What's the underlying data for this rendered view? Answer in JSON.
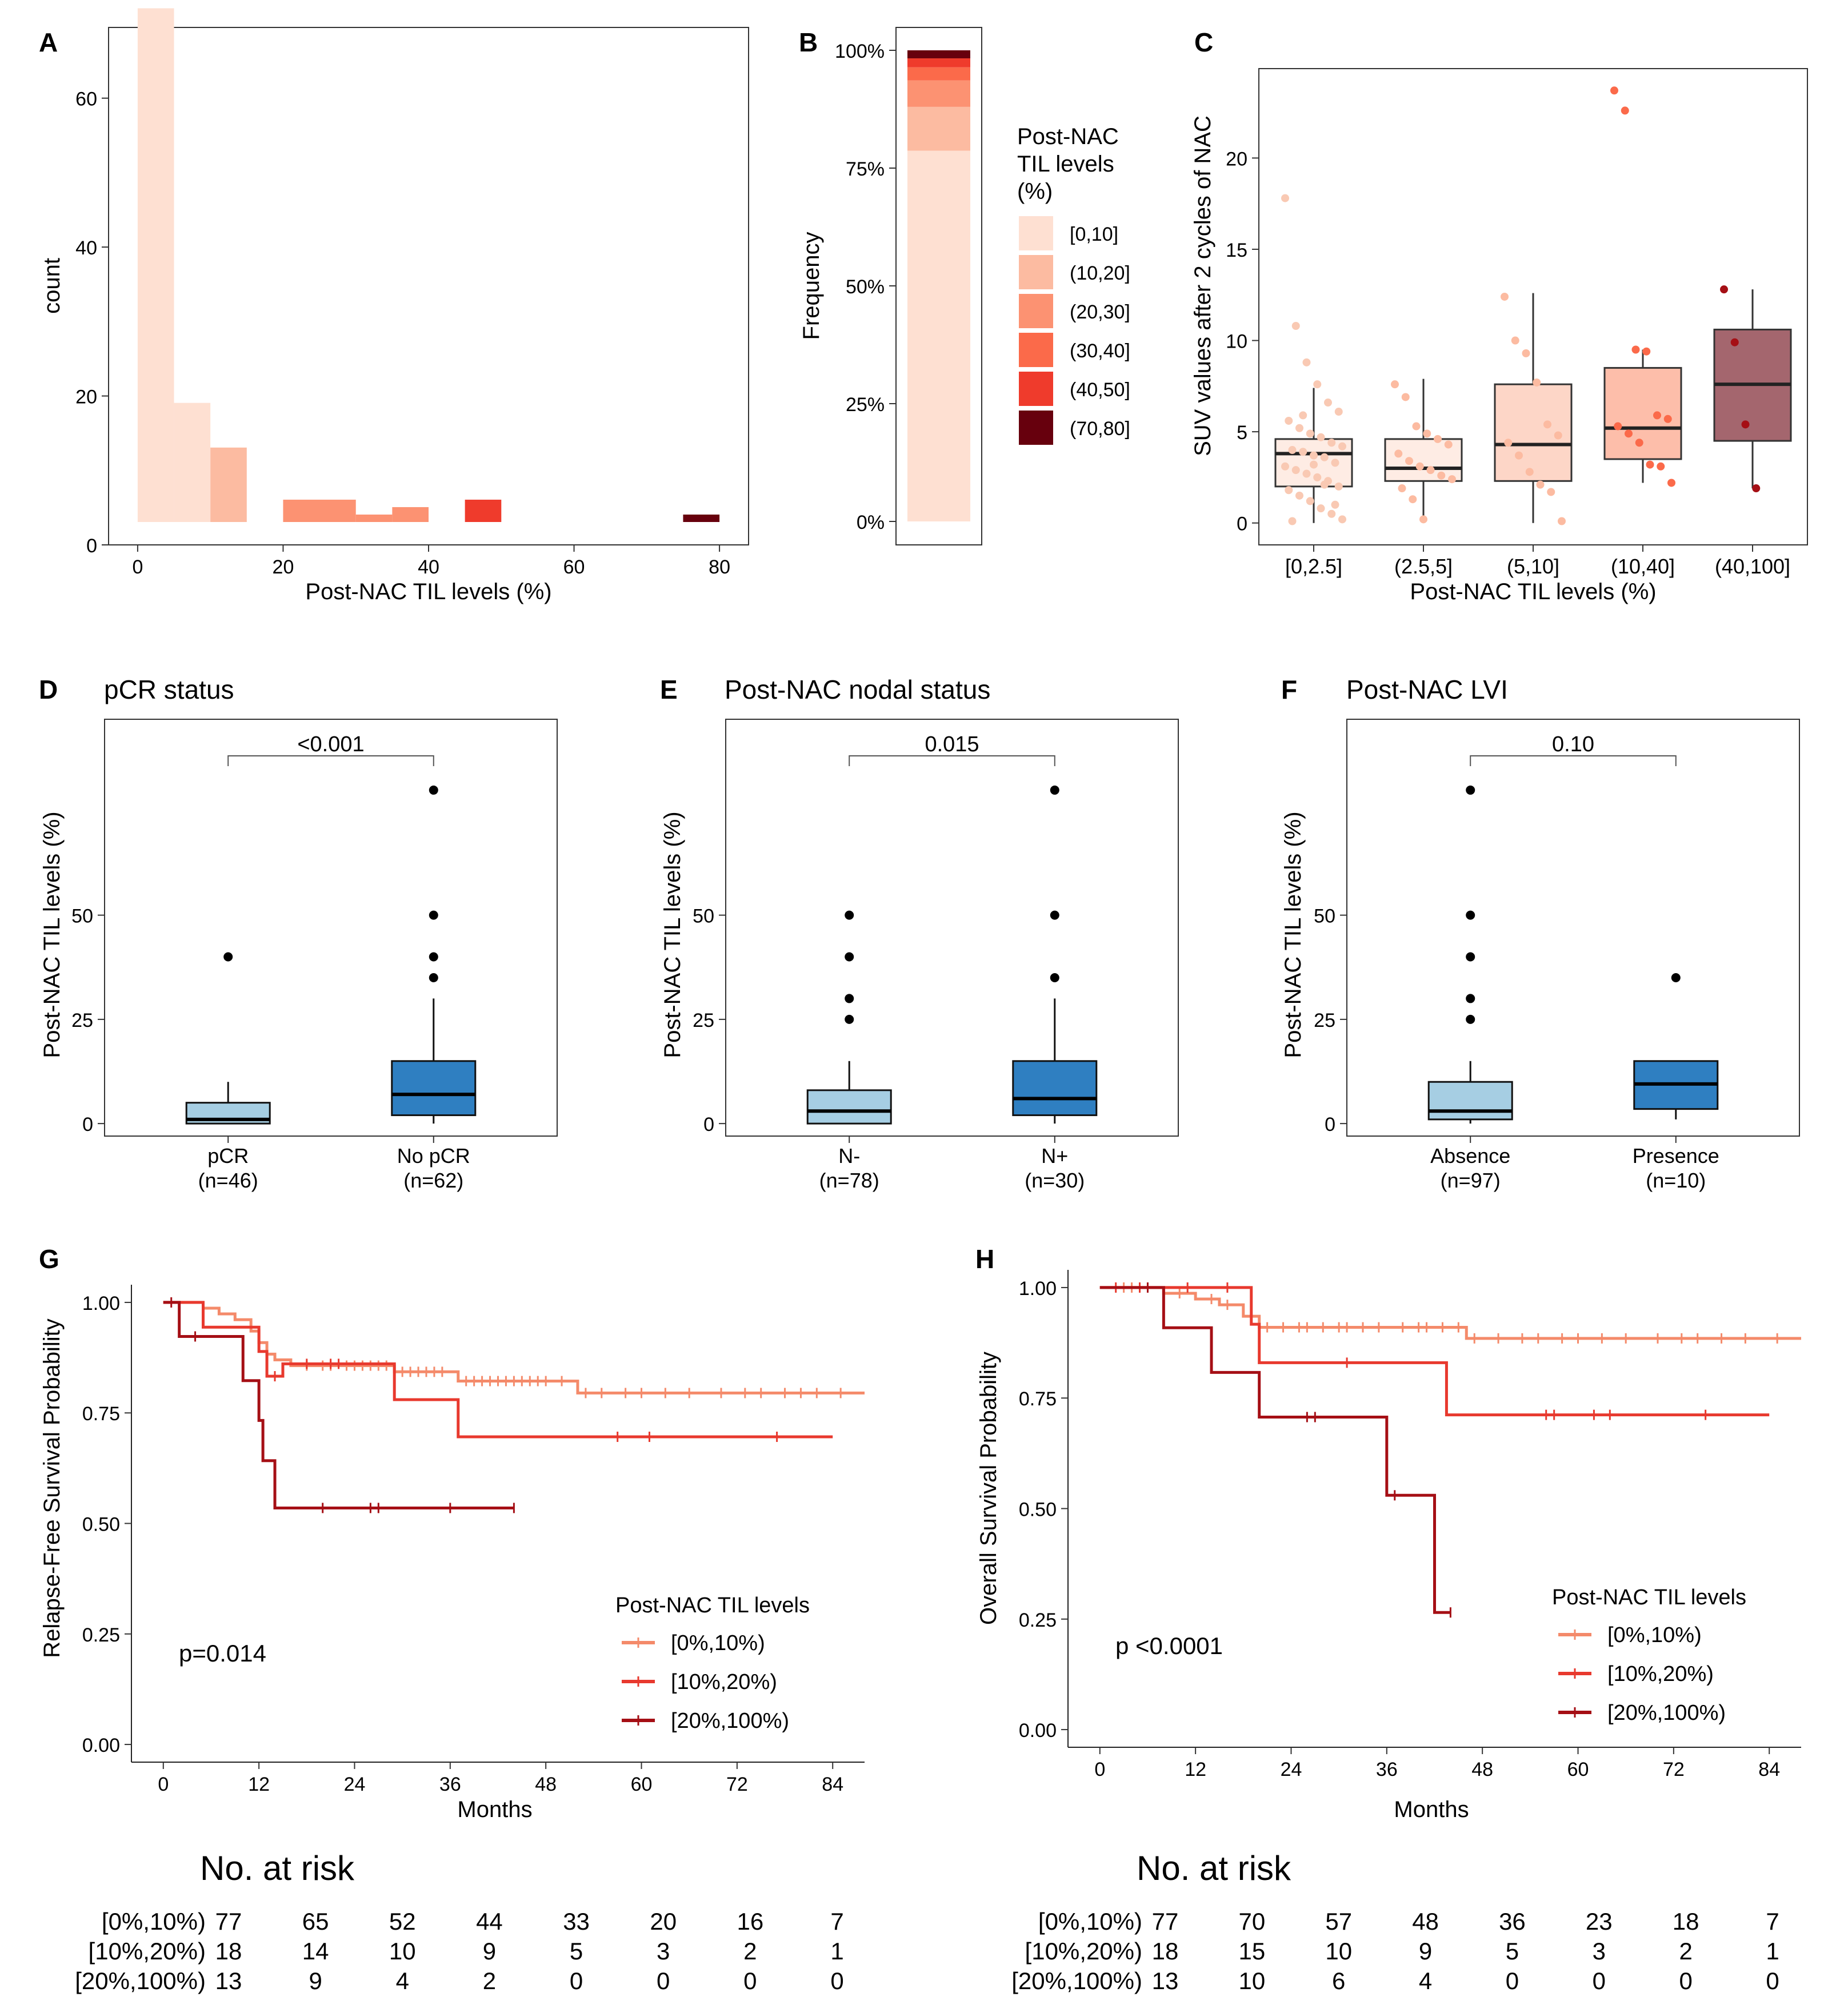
{
  "colors": {
    "t0": "#fee0d2",
    "t1": "#fcbba1",
    "t2": "#fc9272",
    "t3": "#fb6a4a",
    "t4": "#ef3b2c",
    "t5": "#67000d",
    "km0": "#f48a6a",
    "km1": "#e8392e",
    "km2": "#a50f15",
    "box_light": "#a6cee3",
    "box_dark": "#2f7fc1",
    "point": "#000000"
  },
  "chart_data": [
    {
      "panel": "A",
      "type": "bar",
      "xlabel": "Post-NAC TIL levels (%)",
      "ylabel": "count",
      "xlim": [
        -4,
        84
      ],
      "ylim": [
        0,
        69.5
      ],
      "xticks": [
        0,
        20,
        40,
        60,
        80
      ],
      "yticks": [
        0,
        20,
        40,
        60
      ],
      "bins": [
        {
          "x0": 0,
          "x1": 5,
          "count": 69,
          "cat": 0
        },
        {
          "x0": 5,
          "x1": 10,
          "count": 16,
          "cat": 0
        },
        {
          "x0": 10,
          "x1": 15,
          "count": 10,
          "cat": 1
        },
        {
          "x0": 20,
          "x1": 30,
          "count": 3,
          "cat": 2
        },
        {
          "x0": 30,
          "x1": 35,
          "count": 1,
          "cat": 2
        },
        {
          "x0": 35,
          "x1": 40,
          "count": 2,
          "cat": 2
        },
        {
          "x0": 45,
          "x1": 50,
          "count": 3,
          "cat": 4
        },
        {
          "x0": 75,
          "x1": 80,
          "count": 1,
          "cat": 5
        }
      ]
    },
    {
      "panel": "B",
      "type": "bar",
      "ylabel": "Frequency",
      "yticks": [
        "0%",
        "25%",
        "50%",
        "75%",
        "100%"
      ],
      "legend_title": [
        "Post-NAC",
        "TIL levels",
        "(%)"
      ],
      "categories": [
        "[0,10]",
        "(10,20]",
        "(20,30]",
        "(30,40]",
        "(40,50]",
        "(70,80]"
      ],
      "values": [
        0.787,
        0.093,
        0.056,
        0.028,
        0.019,
        0.017
      ]
    },
    {
      "panel": "C",
      "type": "scatter",
      "xlabel": "Post-NAC TIL levels (%)",
      "ylabel": "SUV values after 2 cycles of NAC",
      "ylim": [
        -1.2,
        24.9
      ],
      "yticks": [
        0,
        5,
        10,
        15,
        20
      ],
      "categories": [
        "[0,2.5]",
        "(2.5,5]",
        "(5,10]",
        "(10,40]",
        "(40,100]"
      ],
      "boxes": [
        {
          "q1": 2.0,
          "median": 3.8,
          "q3": 4.6,
          "wlo": 0,
          "whi": 7.4,
          "points": [
            17.8,
            10.8,
            8.8,
            7.6,
            6.6,
            6.1,
            5.6,
            5.2,
            4.9,
            4.7,
            4.4,
            4.2,
            4.0,
            3.9,
            3.7,
            3.6,
            3.3,
            3.1,
            2.9,
            2.7,
            2.5,
            2.3,
            2.0,
            1.8,
            1.5,
            1.2,
            0.8,
            0.5,
            0.2,
            0.1,
            5.9,
            3.2,
            2.1,
            1.0
          ]
        },
        {
          "q1": 2.3,
          "median": 3.0,
          "q3": 4.6,
          "wlo": 0,
          "whi": 7.9,
          "points": [
            7.6,
            6.9,
            5.3,
            4.9,
            4.6,
            4.3,
            3.8,
            3.4,
            3.1,
            2.9,
            2.6,
            2.4,
            1.9,
            1.3,
            0.2
          ]
        },
        {
          "q1": 2.3,
          "median": 4.3,
          "q3": 7.6,
          "wlo": 0,
          "whi": 12.6,
          "points": [
            12.4,
            10.0,
            9.3,
            7.7,
            5.4,
            4.8,
            4.4,
            3.7,
            2.8,
            2.1,
            1.7,
            0.1
          ]
        },
        {
          "q1": 3.5,
          "median": 5.2,
          "q3": 8.5,
          "wlo": 2.2,
          "whi": 9.5,
          "points": [
            23.7,
            22.6,
            9.5,
            9.4,
            5.9,
            5.7,
            5.3,
            4.9,
            4.4,
            3.2,
            3.1,
            2.2
          ]
        },
        {
          "q1": 4.5,
          "median": 7.6,
          "q3": 10.6,
          "wlo": 1.9,
          "whi": 12.8,
          "points": [
            12.8,
            9.9,
            5.4,
            1.9
          ]
        }
      ]
    },
    {
      "panel": "D",
      "title": "pCR status",
      "type": "bar",
      "ylabel": "Post-NAC TIL levels (%)",
      "ylim": [
        -3,
        97
      ],
      "yticks": [
        0,
        25,
        50
      ],
      "pvalue": "<0.001",
      "groups": [
        {
          "label": "pCR",
          "n": "(n=46)",
          "color": "light",
          "q1": 0,
          "median": 1,
          "q3": 5,
          "wlo": 0,
          "whi": 10,
          "outliers": [
            40
          ]
        },
        {
          "label": "No pCR",
          "n": "(n=62)",
          "color": "dark",
          "q1": 2,
          "median": 7,
          "q3": 15,
          "wlo": 0,
          "whi": 30,
          "outliers": [
            35,
            40,
            50,
            80
          ]
        }
      ]
    },
    {
      "panel": "E",
      "title": "Post-NAC nodal status",
      "type": "bar",
      "ylabel": "Post-NAC TIL levels (%)",
      "ylim": [
        -3,
        97
      ],
      "yticks": [
        0,
        25,
        50
      ],
      "pvalue": "0.015",
      "groups": [
        {
          "label": "N-",
          "n": "(n=78)",
          "color": "light",
          "q1": 0,
          "median": 3,
          "q3": 8,
          "wlo": 0,
          "whi": 15,
          "outliers": [
            25,
            30,
            40,
            50
          ]
        },
        {
          "label": "N+",
          "n": "(n=30)",
          "color": "dark",
          "q1": 2,
          "median": 6,
          "q3": 15,
          "wlo": 0,
          "whi": 30,
          "outliers": [
            35,
            50,
            80
          ]
        }
      ]
    },
    {
      "panel": "F",
      "title": "Post-NAC LVI",
      "type": "bar",
      "ylabel": "Post-NAC TIL levels (%)",
      "ylim": [
        -3,
        97
      ],
      "yticks": [
        0,
        25,
        50
      ],
      "pvalue": "0.10",
      "groups": [
        {
          "label": "Absence",
          "n": "(n=97)",
          "color": "light",
          "q1": 1,
          "median": 3,
          "q3": 10,
          "wlo": 0,
          "whi": 15,
          "outliers": [
            25,
            30,
            40,
            50,
            80
          ]
        },
        {
          "label": "Presence",
          "n": "(n=10)",
          "color": "dark",
          "q1": 3.5,
          "median": 9.5,
          "q3": 15,
          "wlo": 1,
          "whi": 15,
          "outliers": [
            35
          ]
        }
      ]
    },
    {
      "panel": "G",
      "type": "line",
      "xlabel": "Months",
      "ylabel": "Relapse-Free Survival Probability",
      "xlim": [
        -4,
        88
      ],
      "ylim": [
        -0.04,
        1.04
      ],
      "xticks": [
        0,
        12,
        24,
        36,
        48,
        60,
        72,
        84
      ],
      "yticks": [
        "0.00",
        "0.25",
        "0.50",
        "0.75",
        "1.00"
      ],
      "pvalue": "p=0.014",
      "legend_title": "Post-NAC TIL levels",
      "series": [
        {
          "name": "[0%,10%)",
          "steps": [
            [
              0,
              1.0
            ],
            [
              5,
              0.987
            ],
            [
              7,
              0.974
            ],
            [
              9,
              0.961
            ],
            [
              11,
              0.935
            ],
            [
              12,
              0.909
            ],
            [
              13,
              0.883
            ],
            [
              14,
              0.87
            ],
            [
              16,
              0.857
            ],
            [
              29,
              0.843
            ],
            [
              37,
              0.822
            ],
            [
              52,
              0.795
            ],
            [
              88,
              0.795
            ]
          ],
          "censor": [
            18,
            20,
            21,
            23,
            24,
            25,
            26,
            27,
            28,
            30,
            31,
            32,
            33,
            34,
            35,
            38,
            39,
            40,
            41,
            42,
            43,
            44,
            45,
            46,
            47,
            48,
            50,
            53,
            55,
            58,
            60,
            63,
            66,
            70,
            73,
            75,
            78,
            80,
            82,
            85
          ]
        },
        {
          "name": "[10%,20%)",
          "steps": [
            [
              0,
              1.0
            ],
            [
              5,
              0.944
            ],
            [
              12,
              0.889
            ],
            [
              13,
              0.833
            ],
            [
              15,
              0.861
            ],
            [
              29,
              0.78
            ],
            [
              37,
              0.696
            ],
            [
              84,
              0.696
            ]
          ],
          "censor": [
            14,
            18,
            21,
            22,
            57,
            61,
            77
          ]
        },
        {
          "name": "[20%,100%)",
          "steps": [
            [
              0,
              1.0
            ],
            [
              2,
              0.923
            ],
            [
              10,
              0.823
            ],
            [
              12,
              0.733
            ],
            [
              12.5,
              0.642
            ],
            [
              14,
              0.535
            ],
            [
              44,
              0.535
            ]
          ],
          "censor": [
            1,
            4,
            20,
            26,
            27,
            36,
            44
          ]
        }
      ],
      "risk_title": "No. at risk",
      "risk": [
        {
          "label": "[0%,10%)",
          "counts": [
            77,
            65,
            52,
            44,
            33,
            20,
            16,
            7
          ]
        },
        {
          "label": "[10%,20%)",
          "counts": [
            18,
            14,
            10,
            9,
            5,
            3,
            2,
            1
          ]
        },
        {
          "label": "[20%,100%)",
          "counts": [
            13,
            9,
            4,
            2,
            0,
            0,
            0,
            0
          ]
        }
      ]
    },
    {
      "panel": "H",
      "type": "line",
      "xlabel": "Months",
      "ylabel": "Overall Survival Probability",
      "xlim": [
        -4,
        88
      ],
      "ylim": [
        -0.04,
        1.04
      ],
      "xticks": [
        0,
        12,
        24,
        36,
        48,
        60,
        72,
        84
      ],
      "yticks": [
        "0.00",
        "0.25",
        "0.50",
        "0.75",
        "1.00"
      ],
      "pvalue": "p <0.0001",
      "legend_title": "Post-NAC TIL levels",
      "series": [
        {
          "name": "[0%,10%)",
          "steps": [
            [
              0,
              1.0
            ],
            [
              8,
              0.987
            ],
            [
              12,
              0.974
            ],
            [
              15,
              0.961
            ],
            [
              18,
              0.935
            ],
            [
              20,
              0.91
            ],
            [
              46,
              0.885
            ],
            [
              88,
              0.885
            ]
          ],
          "censor": [
            3,
            4,
            10,
            14,
            16,
            21,
            23,
            25,
            26,
            28,
            30,
            31,
            33,
            35,
            38,
            40,
            41,
            43,
            45,
            47,
            50,
            53,
            55,
            58,
            60,
            63,
            66,
            70,
            73,
            75,
            78,
            81,
            85
          ]
        },
        {
          "name": "[10%,20%)",
          "steps": [
            [
              0,
              1.0
            ],
            [
              19,
              0.917
            ],
            [
              20,
              0.83
            ],
            [
              43,
              0.83
            ],
            [
              43.5,
              0.712
            ],
            [
              84,
              0.712
            ]
          ],
          "censor": [
            2,
            5,
            11,
            16,
            31,
            56,
            57,
            62,
            64,
            76
          ]
        },
        {
          "name": "[20%,100%)",
          "steps": [
            [
              0,
              1.0
            ],
            [
              8,
              0.909
            ],
            [
              14,
              0.808
            ],
            [
              20,
              0.707
            ],
            [
              36,
              0.53
            ],
            [
              42,
              0.265
            ],
            [
              44,
              0.265
            ]
          ],
          "censor": [
            6,
            26,
            27,
            37,
            44
          ]
        }
      ],
      "risk_title": "No. at risk",
      "risk": [
        {
          "label": "[0%,10%)",
          "counts": [
            77,
            70,
            57,
            48,
            36,
            23,
            18,
            7
          ]
        },
        {
          "label": "[10%,20%)",
          "counts": [
            18,
            15,
            10,
            9,
            5,
            3,
            2,
            1
          ]
        },
        {
          "label": "[20%,100%)",
          "counts": [
            13,
            10,
            6,
            4,
            0,
            0,
            0,
            0
          ]
        }
      ]
    }
  ]
}
